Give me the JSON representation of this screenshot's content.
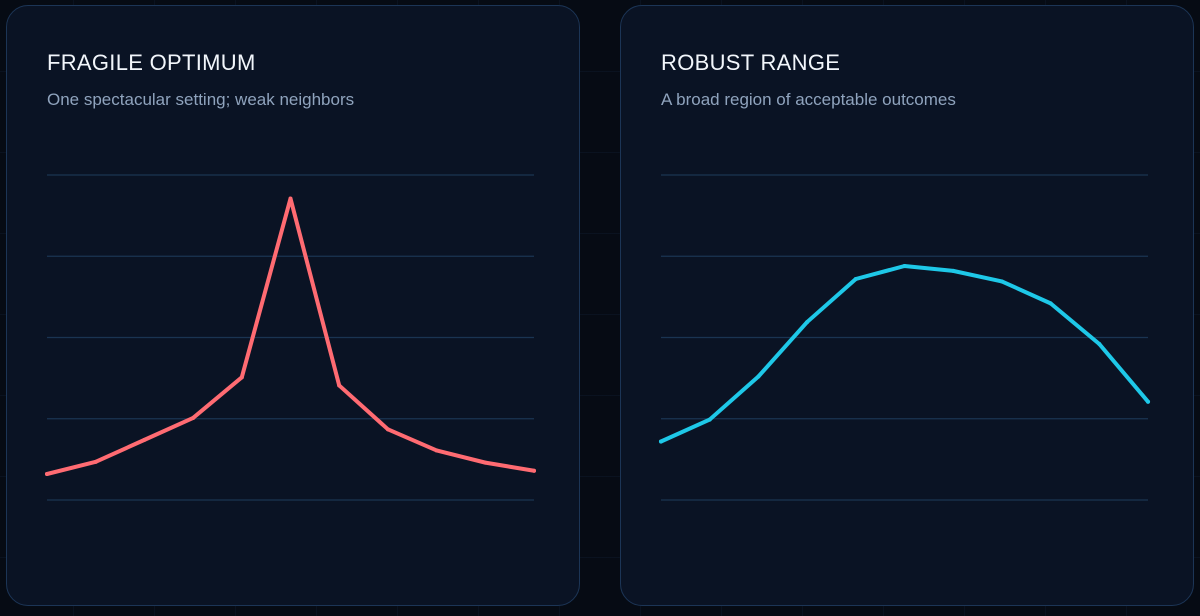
{
  "panels": [
    {
      "title": "FRAGILE OPTIMUM",
      "subtitle": "One spectacular setting; weak neighbors"
    },
    {
      "title": "ROBUST RANGE",
      "subtitle": "A broad region of acceptable outcomes"
    }
  ],
  "chart_data": [
    {
      "type": "line",
      "title": "FRAGILE OPTIMUM",
      "subtitle": "One spectacular setting; weak neighbors",
      "x": [
        0,
        1,
        2,
        3,
        4,
        5,
        6,
        7,
        8,
        9,
        10
      ],
      "values": [
        0.32,
        0.47,
        0.74,
        1.01,
        1.51,
        3.71,
        1.41,
        0.87,
        0.61,
        0.46,
        0.36
      ],
      "ylim": [
        0,
        4
      ],
      "gridlines": [
        0,
        1,
        2,
        3,
        4
      ],
      "grid": true,
      "color": "#ff6b72"
    },
    {
      "type": "line",
      "title": "ROBUST RANGE",
      "subtitle": "A broad region of acceptable outcomes",
      "x": [
        0,
        1,
        2,
        3,
        4,
        5,
        6,
        7,
        8,
        9,
        10
      ],
      "values": [
        0.72,
        0.99,
        1.52,
        2.19,
        2.72,
        2.88,
        2.82,
        2.69,
        2.42,
        1.92,
        1.21
      ],
      "ylim": [
        0,
        4
      ],
      "gridlines": [
        0,
        1,
        2,
        3,
        4
      ],
      "grid": true,
      "color": "#1ec8e8"
    }
  ],
  "colors": {
    "background": "#060b14",
    "panel": "#0a1324",
    "panel_border": "#1c3556",
    "gridline": "#1a3452",
    "title": "#f2f6fb",
    "subtitle": "#8fa3bd"
  }
}
